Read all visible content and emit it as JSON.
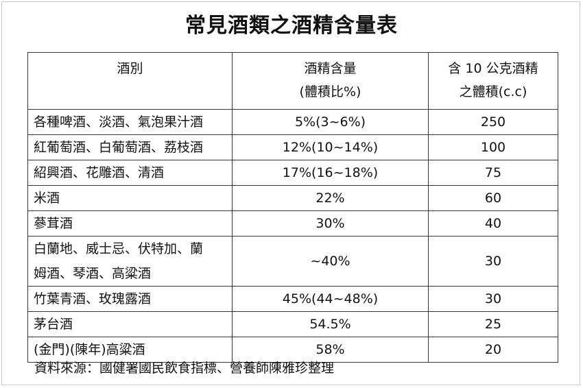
{
  "title": "常見酒類之酒精含量表",
  "table": {
    "headers": {
      "col1": "酒別",
      "col2_line1": "酒精含量",
      "col2_line2": "(體積比%)",
      "col3_line1": "含 10 公克酒精",
      "col3_line2": "之體積(c.c)"
    },
    "rows": [
      {
        "name": "各種啤酒、淡酒、氣泡果汁酒",
        "percent": "5%(3~6%)",
        "volume": "250"
      },
      {
        "name": "紅葡萄酒、白葡萄酒、荔枝酒",
        "percent": "12%(10~14%)",
        "volume": "100"
      },
      {
        "name": "紹興酒、花雕酒、清酒",
        "percent": "17%(16~18%)",
        "volume": "75"
      },
      {
        "name": "米酒",
        "percent": "22%",
        "volume": "60"
      },
      {
        "name": "蔘茸酒",
        "percent": "30%",
        "volume": "40"
      },
      {
        "name_line1": "白蘭地、威士忌、伏特加、蘭",
        "name_line2": "姆酒、琴酒、高粱酒",
        "percent": "~40%",
        "volume": "30"
      },
      {
        "name": "竹葉青酒、玫瑰露酒",
        "percent": "45%(44~48%)",
        "volume": "30"
      },
      {
        "name": "茅台酒",
        "percent": "54.5%",
        "volume": "25"
      },
      {
        "name": "(金門)(陳年)高粱酒",
        "percent": "58%",
        "volume": "20"
      }
    ]
  },
  "footnote": "資料來源：國健署國民飲食指標、營養師陳雅珍整理"
}
